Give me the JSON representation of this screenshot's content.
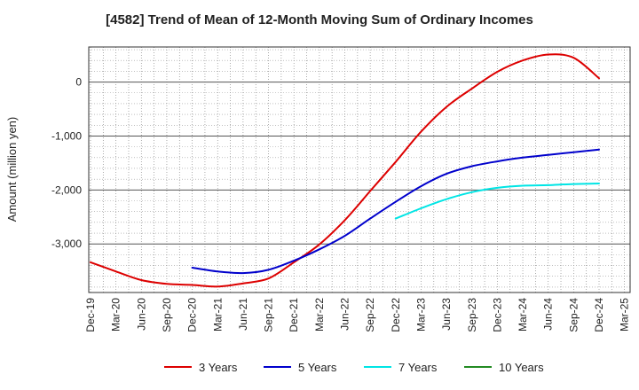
{
  "chart_data": {
    "type": "line",
    "title": "[4582]  Trend of Mean of 12-Month Moving Sum of Ordinary Incomes",
    "xlabel": "",
    "ylabel": "Amount (million yen)",
    "ylim": [
      -3900,
      650
    ],
    "yticks": [
      0,
      -1000,
      -2000,
      -3000
    ],
    "ytick_labels": [
      "0",
      "-1,000",
      "-2,000",
      "-3,000"
    ],
    "categories": [
      "Dec-19",
      "Mar-20",
      "Jun-20",
      "Sep-20",
      "Dec-20",
      "Mar-21",
      "Jun-21",
      "Sep-21",
      "Dec-21",
      "Mar-22",
      "Jun-22",
      "Sep-22",
      "Dec-22",
      "Mar-23",
      "Jun-23",
      "Sep-23",
      "Dec-23",
      "Mar-24",
      "Jun-24",
      "Sep-24",
      "Dec-24",
      "Mar-25"
    ],
    "grid": true,
    "legend_position": "bottom",
    "series": [
      {
        "name": "3 Years",
        "color": "#dd0000",
        "points": [
          [
            0,
            -3340
          ],
          [
            1,
            -3510
          ],
          [
            2,
            -3670
          ],
          [
            3,
            -3740
          ],
          [
            4,
            -3760
          ],
          [
            5,
            -3790
          ],
          [
            6,
            -3730
          ],
          [
            7,
            -3640
          ],
          [
            8,
            -3340
          ],
          [
            9,
            -3010
          ],
          [
            10,
            -2560
          ],
          [
            11,
            -2020
          ],
          [
            12,
            -1480
          ],
          [
            13,
            -920
          ],
          [
            14,
            -460
          ],
          [
            15,
            -120
          ],
          [
            16,
            190
          ],
          [
            17,
            400
          ],
          [
            18,
            510
          ],
          [
            19,
            450
          ],
          [
            20,
            70
          ]
        ]
      },
      {
        "name": "5 Years",
        "color": "#0000cc",
        "points": [
          [
            4,
            -3440
          ],
          [
            5,
            -3510
          ],
          [
            6,
            -3540
          ],
          [
            7,
            -3480
          ],
          [
            8,
            -3310
          ],
          [
            9,
            -3100
          ],
          [
            10,
            -2850
          ],
          [
            11,
            -2530
          ],
          [
            12,
            -2220
          ],
          [
            13,
            -1930
          ],
          [
            14,
            -1700
          ],
          [
            15,
            -1560
          ],
          [
            16,
            -1470
          ],
          [
            17,
            -1400
          ],
          [
            18,
            -1350
          ],
          [
            19,
            -1300
          ],
          [
            20,
            -1250
          ]
        ]
      },
      {
        "name": "7 Years",
        "color": "#00e5e5",
        "points": [
          [
            12,
            -2530
          ],
          [
            13,
            -2340
          ],
          [
            14,
            -2170
          ],
          [
            15,
            -2040
          ],
          [
            16,
            -1960
          ],
          [
            17,
            -1920
          ],
          [
            18,
            -1910
          ],
          [
            19,
            -1890
          ],
          [
            20,
            -1880
          ]
        ]
      },
      {
        "name": "10 Years",
        "color": "#228b22",
        "points": []
      }
    ]
  }
}
